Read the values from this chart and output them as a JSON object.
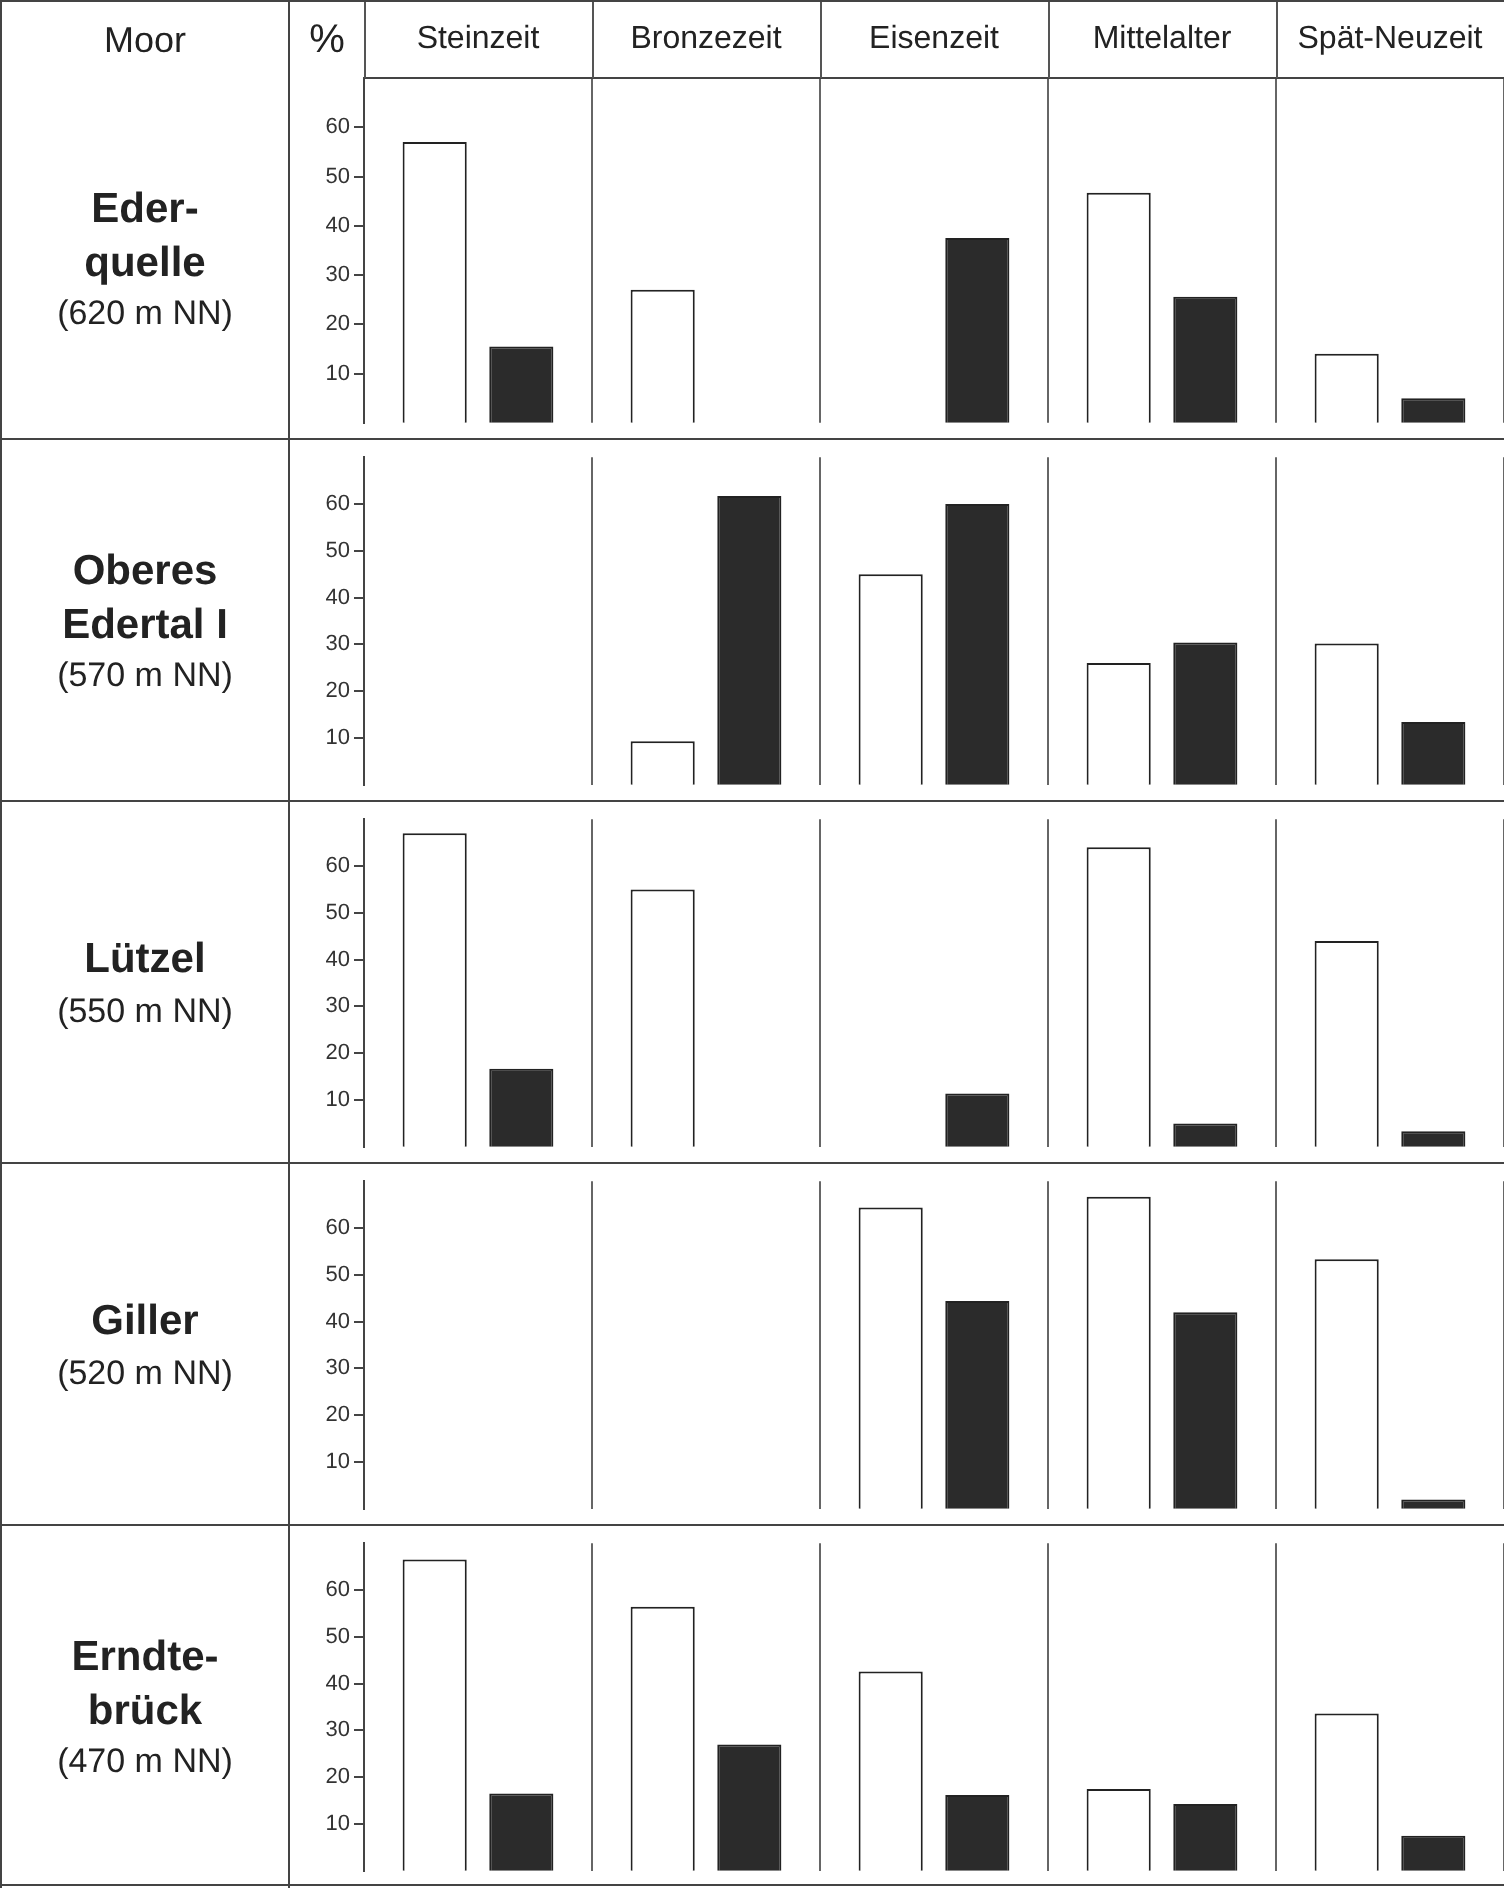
{
  "chart_data": [
    {
      "type": "bar",
      "title": "Eder-\nquelle",
      "subtitle": "(620 m NN)",
      "ylabel": "%",
      "annotations": [
        "Moor"
      ],
      "categories": [
        "Steinzeit",
        "Bronzezeit",
        "Eisenzeit",
        "Mittelalter",
        "Spät-Neuzeit"
      ],
      "series": [
        {
          "color": "#ffffff",
          "values": [
            57,
            27,
            null,
            46.7,
            14
          ]
        },
        {
          "color": "#2b2b2b",
          "values": [
            15.5,
            null,
            37.5,
            25.6,
            5
          ]
        }
      ],
      "ylim": [
        0,
        70
      ],
      "yticks": [
        10,
        20,
        30,
        40,
        50,
        60
      ],
      "grid": "x"
    },
    {
      "type": "bar",
      "title": "Oberes\nEdertal I",
      "subtitle": "(570 m NN)",
      "categories": [
        null,
        null,
        null,
        null,
        null
      ],
      "series": [
        {
          "color": "#ffffff",
          "values": [
            null,
            9.3,
            45,
            26,
            30.2
          ]
        },
        {
          "color": "#2b2b2b",
          "values": [
            null,
            61.7,
            60,
            30.4,
            13.4
          ]
        }
      ],
      "ylim": [
        0,
        70
      ],
      "yticks": [
        10,
        20,
        30,
        40,
        50,
        60
      ],
      "grid": "x",
      "tick_labels": "y"
    },
    {
      "type": "bar",
      "title": "Lützel",
      "subtitle": "(550 m NN)",
      "categories": [
        null,
        null,
        null,
        null,
        null
      ],
      "series": [
        {
          "color": "#ffffff",
          "values": [
            67,
            55,
            null,
            64,
            44
          ]
        },
        {
          "color": "#2b2b2b",
          "values": [
            16.7,
            null,
            11.4,
            5,
            3.3
          ]
        }
      ],
      "ylim": [
        0,
        70
      ],
      "yticks": [
        10,
        20,
        30,
        40,
        50,
        60
      ],
      "grid": "x",
      "tick_labels": "y"
    },
    {
      "type": "bar",
      "title": "Giller",
      "subtitle": "(520 m NN)",
      "categories": [
        null,
        null,
        null,
        null,
        null
      ],
      "series": [
        {
          "color": "#ffffff",
          "values": [
            null,
            null,
            64.4,
            66.7,
            53.3
          ]
        },
        {
          "color": "#2b2b2b",
          "values": [
            null,
            null,
            44.4,
            42,
            2
          ]
        }
      ],
      "ylim": [
        0,
        70
      ],
      "yticks": [
        10,
        20,
        30,
        40,
        50,
        60
      ],
      "grid": "x",
      "tick_labels": "y"
    },
    {
      "type": "bar",
      "title": "Erndte-\nbrück",
      "subtitle": "(470 m NN)",
      "categories": [
        null,
        null,
        null,
        null,
        null
      ],
      "series": [
        {
          "color": "#ffffff",
          "values": [
            66.5,
            56.4,
            42.6,
            17.5,
            33.6
          ]
        },
        {
          "color": "#2b2b2b",
          "values": [
            16.5,
            27,
            16.2,
            14.3,
            7.5
          ]
        }
      ],
      "ylim": [
        0,
        70
      ],
      "yticks": [
        10,
        20,
        30,
        40,
        50,
        60
      ],
      "grid": "x",
      "tick_labels": "y"
    }
  ]
}
